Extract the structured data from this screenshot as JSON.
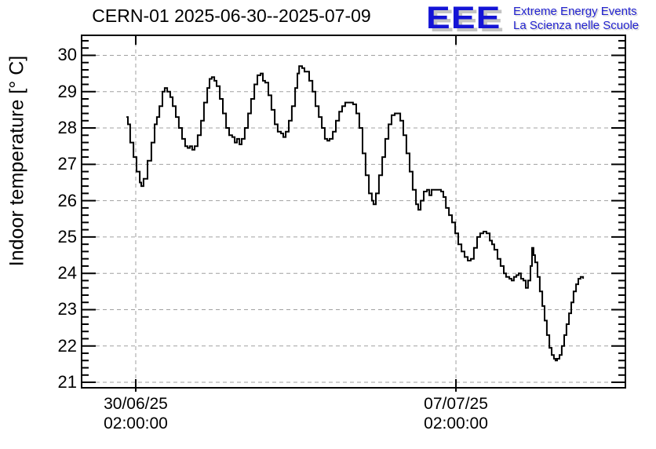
{
  "logo": {
    "acronym": "EEE",
    "line1": "Extreme Energy Events",
    "line2": "La Scienza nelle Scuole",
    "blue": "#1414d6",
    "shadow": "#c3c3c3"
  },
  "chart_data": {
    "type": "line",
    "style": "step",
    "title": "CERN-01 2025-06-30--2025-07-09",
    "ylabel": "Indoor temperature [° C]",
    "series_name": "Indoor temperature",
    "line_color": "#000000",
    "grid_color": "#a0a0a0",
    "grid": true,
    "legend": "none",
    "x_unit": "hours since 2025-06-29 00:00",
    "xlim": [
      -2.4,
      282.9
    ],
    "ylim": [
      20.85,
      30.55
    ],
    "y_ticks": [
      21,
      22,
      23,
      24,
      25,
      26,
      27,
      28,
      29,
      30
    ],
    "y_minor_step": 0.2,
    "x_ticks": [
      {
        "value": 26,
        "date": "30/06/25",
        "time": "02:00:00"
      },
      {
        "value": 194,
        "date": "07/07/25",
        "time": "02:00:00"
      }
    ],
    "points": [
      [
        21.1,
        28.3
      ],
      [
        21.9,
        28.1
      ],
      [
        23.1,
        27.6
      ],
      [
        24.8,
        27.2
      ],
      [
        26.4,
        26.8
      ],
      [
        28.1,
        26.5
      ],
      [
        28.9,
        26.4
      ],
      [
        30.1,
        26.6
      ],
      [
        32.2,
        27.1
      ],
      [
        34.2,
        27.6
      ],
      [
        35.9,
        28.1
      ],
      [
        37.1,
        28.3
      ],
      [
        38.4,
        28.6
      ],
      [
        40.0,
        29.0
      ],
      [
        41.2,
        29.1
      ],
      [
        42.5,
        29.0
      ],
      [
        44.1,
        28.85
      ],
      [
        45.4,
        28.6
      ],
      [
        47.0,
        28.3
      ],
      [
        48.6,
        28.0
      ],
      [
        50.3,
        27.7
      ],
      [
        51.9,
        27.5
      ],
      [
        53.2,
        27.45
      ],
      [
        54.4,
        27.5
      ],
      [
        55.6,
        27.4
      ],
      [
        56.9,
        27.5
      ],
      [
        58.5,
        27.8
      ],
      [
        60.2,
        28.2
      ],
      [
        61.8,
        28.7
      ],
      [
        63.5,
        29.1
      ],
      [
        64.7,
        29.35
      ],
      [
        65.9,
        29.4
      ],
      [
        67.2,
        29.3
      ],
      [
        68.4,
        29.15
      ],
      [
        70.1,
        28.8
      ],
      [
        71.7,
        28.4
      ],
      [
        73.4,
        28.0
      ],
      [
        75.0,
        27.8
      ],
      [
        76.6,
        27.75
      ],
      [
        77.9,
        27.6
      ],
      [
        79.1,
        27.7
      ],
      [
        80.4,
        27.55
      ],
      [
        81.6,
        27.7
      ],
      [
        83.2,
        28.0
      ],
      [
        84.9,
        28.4
      ],
      [
        86.5,
        28.8
      ],
      [
        88.2,
        29.2
      ],
      [
        89.8,
        29.45
      ],
      [
        91.5,
        29.5
      ],
      [
        92.7,
        29.3
      ],
      [
        93.9,
        29.25
      ],
      [
        95.6,
        28.9
      ],
      [
        97.2,
        28.5
      ],
      [
        98.9,
        28.1
      ],
      [
        100.5,
        27.9
      ],
      [
        102.2,
        27.85
      ],
      [
        103.4,
        27.75
      ],
      [
        104.7,
        27.9
      ],
      [
        106.3,
        28.2
      ],
      [
        107.9,
        28.6
      ],
      [
        109.6,
        29.1
      ],
      [
        110.8,
        29.5
      ],
      [
        111.7,
        29.7
      ],
      [
        113.3,
        29.65
      ],
      [
        114.5,
        29.55
      ],
      [
        115.8,
        29.55
      ],
      [
        117.0,
        29.3
      ],
      [
        118.7,
        29.0
      ],
      [
        120.3,
        28.6
      ],
      [
        122.0,
        28.3
      ],
      [
        123.6,
        28.0
      ],
      [
        125.2,
        27.7
      ],
      [
        126.5,
        27.65
      ],
      [
        127.7,
        27.7
      ],
      [
        129.4,
        27.9
      ],
      [
        131.0,
        28.2
      ],
      [
        132.7,
        28.45
      ],
      [
        134.3,
        28.6
      ],
      [
        135.9,
        28.7
      ],
      [
        138.0,
        28.7
      ],
      [
        140.0,
        28.65
      ],
      [
        141.7,
        28.4
      ],
      [
        143.3,
        28.0
      ],
      [
        145.0,
        27.3
      ],
      [
        146.6,
        26.7
      ],
      [
        148.3,
        26.2
      ],
      [
        149.9,
        26.0
      ],
      [
        150.7,
        25.9
      ],
      [
        152.0,
        26.2
      ],
      [
        153.6,
        26.7
      ],
      [
        155.3,
        27.2
      ],
      [
        156.9,
        27.7
      ],
      [
        158.6,
        28.1
      ],
      [
        160.2,
        28.35
      ],
      [
        161.9,
        28.4
      ],
      [
        163.5,
        28.4
      ],
      [
        164.8,
        28.2
      ],
      [
        166.4,
        27.8
      ],
      [
        168.0,
        27.3
      ],
      [
        169.7,
        26.8
      ],
      [
        171.3,
        26.3
      ],
      [
        173.0,
        25.9
      ],
      [
        174.2,
        25.75
      ],
      [
        175.5,
        26.0
      ],
      [
        177.1,
        26.25
      ],
      [
        178.8,
        26.3
      ],
      [
        180.0,
        26.15
      ],
      [
        181.2,
        26.3
      ],
      [
        182.9,
        26.3
      ],
      [
        184.5,
        26.3
      ],
      [
        186.2,
        26.25
      ],
      [
        187.4,
        26.1
      ],
      [
        188.7,
        25.8
      ],
      [
        190.3,
        25.6
      ],
      [
        191.9,
        25.4
      ],
      [
        193.6,
        25.1
      ],
      [
        195.2,
        24.8
      ],
      [
        196.9,
        24.6
      ],
      [
        198.5,
        24.45
      ],
      [
        200.2,
        24.35
      ],
      [
        201.8,
        24.4
      ],
      [
        203.4,
        24.7
      ],
      [
        205.1,
        25.0
      ],
      [
        206.7,
        25.1
      ],
      [
        208.4,
        25.15
      ],
      [
        210.0,
        25.1
      ],
      [
        211.7,
        24.9
      ],
      [
        212.9,
        24.8
      ],
      [
        214.1,
        24.65
      ],
      [
        215.8,
        24.4
      ],
      [
        217.4,
        24.2
      ],
      [
        219.1,
        24.0
      ],
      [
        220.3,
        23.9
      ],
      [
        222.0,
        23.85
      ],
      [
        223.2,
        23.8
      ],
      [
        224.4,
        23.9
      ],
      [
        225.7,
        23.95
      ],
      [
        226.9,
        24.0
      ],
      [
        228.1,
        23.85
      ],
      [
        229.4,
        23.8
      ],
      [
        230.6,
        23.6
      ],
      [
        231.8,
        23.8
      ],
      [
        233.1,
        24.2
      ],
      [
        233.9,
        24.7
      ],
      [
        234.7,
        24.5
      ],
      [
        235.5,
        24.3
      ],
      [
        236.8,
        23.9
      ],
      [
        238.0,
        23.5
      ],
      [
        239.3,
        23.1
      ],
      [
        240.5,
        22.7
      ],
      [
        241.7,
        22.3
      ],
      [
        243.0,
        21.95
      ],
      [
        244.2,
        21.75
      ],
      [
        245.4,
        21.65
      ],
      [
        246.2,
        21.6
      ],
      [
        247.1,
        21.65
      ],
      [
        248.3,
        21.75
      ],
      [
        249.5,
        22.0
      ],
      [
        250.8,
        22.3
      ],
      [
        252.0,
        22.6
      ],
      [
        253.3,
        22.9
      ],
      [
        254.5,
        23.2
      ],
      [
        255.7,
        23.5
      ],
      [
        257.0,
        23.7
      ],
      [
        258.2,
        23.85
      ],
      [
        259.4,
        23.9
      ],
      [
        260.7,
        23.85
      ]
    ]
  }
}
